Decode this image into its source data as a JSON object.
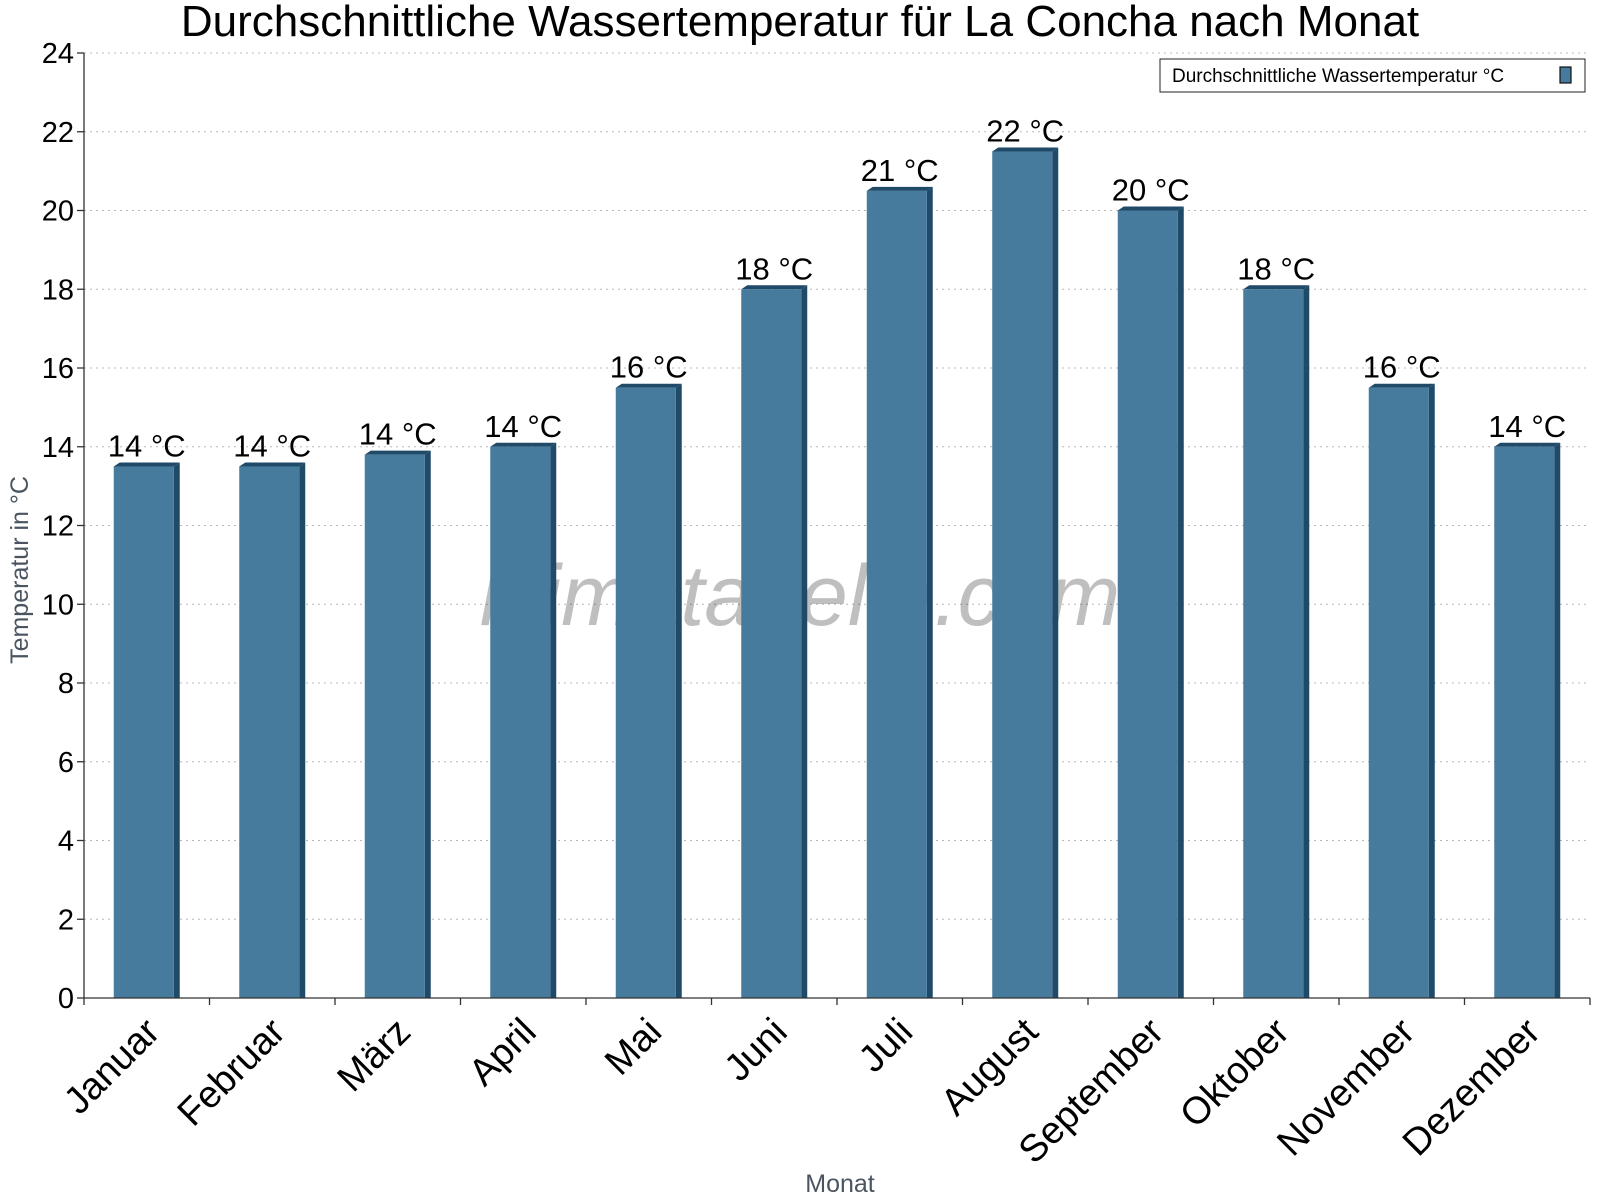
{
  "chart_data": {
    "type": "bar",
    "title": "Durchschnittliche Wassertemperatur für La Concha nach Monat",
    "xlabel": "Monat",
    "ylabel": "Temperatur in °C",
    "ylim": [
      0,
      24
    ],
    "yticks": [
      0,
      2,
      4,
      6,
      8,
      10,
      12,
      14,
      16,
      18,
      20,
      22,
      24
    ],
    "grid": true,
    "legend_position": "top-right",
    "categories": [
      "Januar",
      "Februar",
      "März",
      "April",
      "Mai",
      "Juni",
      "Juli",
      "August",
      "September",
      "Oktober",
      "November",
      "Dezember"
    ],
    "series": [
      {
        "name": "Durchschnittliche Wassertemperatur °C",
        "color": "#477b9e",
        "values": [
          13.5,
          13.5,
          13.8,
          14.0,
          15.5,
          18.0,
          20.5,
          21.5,
          20.0,
          18.0,
          15.5,
          14.0
        ],
        "labels": [
          "14 °C",
          "14 °C",
          "14 °C",
          "14 °C",
          "16 °C",
          "18 °C",
          "21 °C",
          "22 °C",
          "20 °C",
          "18 °C",
          "16 °C",
          "14 °C"
        ]
      }
    ],
    "watermark": "klimatabelle.com"
  },
  "colors": {
    "bar_face": "#477b9e",
    "bar_side": "#1f4a68",
    "bar_top": "#1f4a68"
  }
}
